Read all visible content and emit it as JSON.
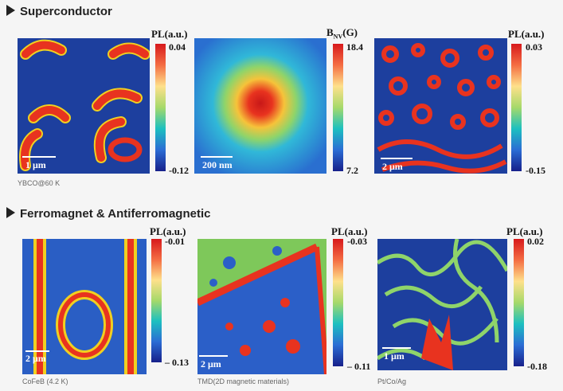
{
  "sections": [
    {
      "title": "Superconductor",
      "caption": "YBCO@60 K",
      "panels": [
        {
          "colorbar_label": "PL(a.u.)",
          "max": "0.04",
          "min": "-0.12",
          "scale_bar": "1 μm"
        },
        {
          "colorbar_label": {
            "main": "B",
            "sub": "NV",
            "unit": "(G)"
          },
          "max": "18.4",
          "min": "7.2",
          "scale_bar": "200 nm"
        },
        {
          "colorbar_label": "PL(a.u.)",
          "max": "0.03",
          "min": "-0.15",
          "scale_bar": "2 μm"
        }
      ]
    },
    {
      "title": "Ferromagnet & Antiferromagnetic",
      "panels": [
        {
          "colorbar_label": "PL(a.u.)",
          "max": "-0.01",
          "min": "– 0.13",
          "scale_bar": "2 μm",
          "caption": "CoFeB (4.2 K)"
        },
        {
          "colorbar_label": "PL(a.u.)",
          "max": "-0.03",
          "min": "– 0.11",
          "scale_bar": "2 μm",
          "caption": "TMD(2D magnetic materials)"
        },
        {
          "colorbar_label": "PL(a.u.)",
          "max": "0.02",
          "min": "-0.18",
          "scale_bar": "1 μm",
          "caption": "Pt/Co/Ag"
        }
      ]
    }
  ]
}
